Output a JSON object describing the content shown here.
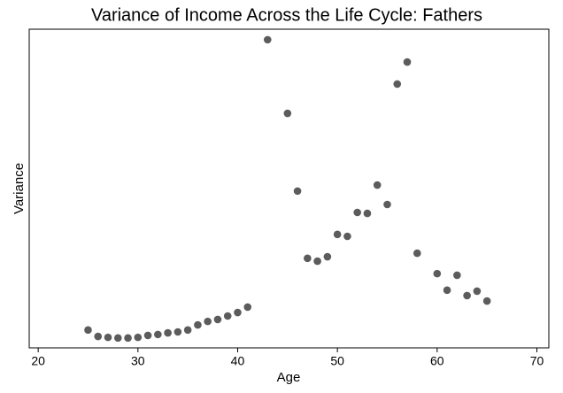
{
  "chart_data": {
    "type": "scatter",
    "title": "Variance of Income Across the Life Cycle: Fathers",
    "x_label": "Age",
    "y_label": "Variance",
    "color": "#5c5c5c",
    "x": [
      25,
      26,
      27,
      28,
      29,
      30,
      31,
      32,
      33,
      34,
      35,
      36,
      37,
      38,
      39,
      40,
      41,
      43,
      45,
      46,
      47,
      48,
      49,
      50,
      51,
      52,
      53,
      54,
      55,
      56,
      57,
      58,
      60,
      61,
      62,
      63,
      64,
      65
    ],
    "values": [
      5.6,
      3.6,
      3.3,
      3.1,
      3.1,
      3.3,
      3.9,
      4.2,
      4.7,
      5.0,
      5.6,
      7.2,
      8.3,
      8.9,
      10.0,
      11.1,
      12.8,
      96.7,
      73.6,
      49.2,
      28.1,
      27.2,
      28.6,
      35.6,
      35.0,
      42.5,
      42.2,
      51.1,
      45.0,
      82.8,
      89.7,
      29.7,
      23.3,
      18.1,
      22.8,
      16.4,
      17.8,
      14.7
    ],
    "xlim": [
      19.1,
      71.2
    ],
    "xticks": [
      20,
      30,
      40,
      50,
      60,
      70
    ],
    "ylim": [
      0,
      100
    ]
  }
}
